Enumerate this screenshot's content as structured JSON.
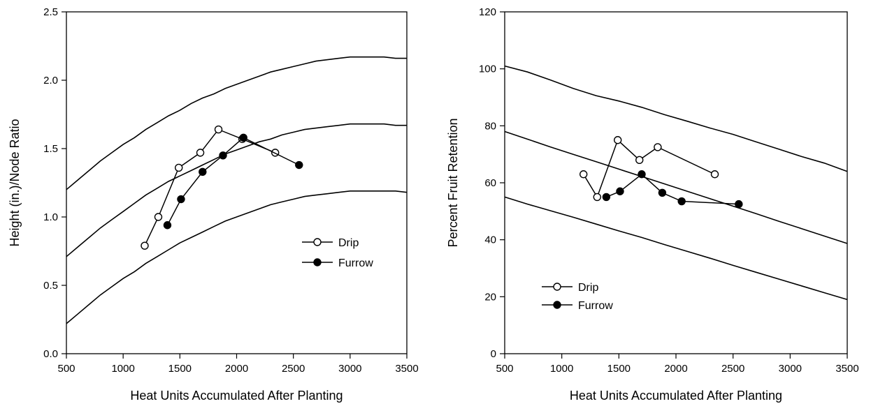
{
  "chart_data": [
    {
      "type": "line",
      "xlabel": "Heat Units Accumulated After Planting",
      "ylabel": "Height (in.)/Node Ratio",
      "xlim": [
        500,
        3500
      ],
      "ylim": [
        0,
        2.5
      ],
      "xticks": [
        500,
        1000,
        1500,
        2000,
        2500,
        3000,
        3500
      ],
      "yticks": [
        0.0,
        0.5,
        1.0,
        1.5,
        2.0,
        2.5
      ],
      "ytick_labels": [
        "0.0",
        "0.5",
        "1.0",
        "1.5",
        "2.0",
        "2.5"
      ],
      "grid": false,
      "legend_position": "center-right",
      "reference_curves": [
        {
          "x": [
            500,
            600,
            700,
            800,
            900,
            1000,
            1100,
            1200,
            1300,
            1400,
            1500,
            1600,
            1700,
            1800,
            1900,
            2000,
            2100,
            2200,
            2300,
            2400,
            2500,
            2600,
            2700,
            2800,
            2900,
            3000,
            3100,
            3200,
            3300,
            3400,
            3500
          ],
          "y": [
            1.2,
            1.27,
            1.34,
            1.41,
            1.47,
            1.53,
            1.58,
            1.64,
            1.69,
            1.74,
            1.78,
            1.83,
            1.87,
            1.9,
            1.94,
            1.97,
            2.0,
            2.03,
            2.06,
            2.08,
            2.1,
            2.12,
            2.14,
            2.15,
            2.16,
            2.17,
            2.17,
            2.17,
            2.17,
            2.16,
            2.16
          ]
        },
        {
          "x": [
            500,
            600,
            700,
            800,
            900,
            1000,
            1100,
            1200,
            1300,
            1400,
            1500,
            1600,
            1700,
            1800,
            1900,
            2000,
            2100,
            2200,
            2300,
            2400,
            2500,
            2600,
            2700,
            2800,
            2900,
            3000,
            3100,
            3200,
            3300,
            3400,
            3500
          ],
          "y": [
            0.71,
            0.78,
            0.85,
            0.92,
            0.98,
            1.04,
            1.1,
            1.16,
            1.21,
            1.26,
            1.3,
            1.34,
            1.38,
            1.42,
            1.46,
            1.49,
            1.52,
            1.55,
            1.57,
            1.6,
            1.62,
            1.64,
            1.65,
            1.66,
            1.67,
            1.68,
            1.68,
            1.68,
            1.68,
            1.67,
            1.67
          ]
        },
        {
          "x": [
            500,
            600,
            700,
            800,
            900,
            1000,
            1100,
            1200,
            1300,
            1400,
            1500,
            1600,
            1700,
            1800,
            1900,
            2000,
            2100,
            2200,
            2300,
            2400,
            2500,
            2600,
            2700,
            2800,
            2900,
            3000,
            3100,
            3200,
            3300,
            3400,
            3500
          ],
          "y": [
            0.22,
            0.29,
            0.36,
            0.43,
            0.49,
            0.55,
            0.6,
            0.66,
            0.71,
            0.76,
            0.81,
            0.85,
            0.89,
            0.93,
            0.97,
            1.0,
            1.03,
            1.06,
            1.09,
            1.11,
            1.13,
            1.15,
            1.16,
            1.17,
            1.18,
            1.19,
            1.19,
            1.19,
            1.19,
            1.19,
            1.18
          ]
        }
      ],
      "series": [
        {
          "name": "Drip",
          "marker": "open-circle",
          "x": [
            1190,
            1310,
            1490,
            1680,
            1840,
            2050,
            2340
          ],
          "y": [
            0.79,
            1.0,
            1.36,
            1.47,
            1.64,
            1.57,
            1.47
          ]
        },
        {
          "name": "Furrow",
          "marker": "filled-circle",
          "x": [
            1390,
            1510,
            1700,
            1880,
            2060,
            2550
          ],
          "y": [
            0.94,
            1.13,
            1.33,
            1.45,
            1.58,
            1.38
          ]
        }
      ]
    },
    {
      "type": "line",
      "xlabel": "Heat Units Accumulated After Planting",
      "ylabel": "Percent Fruit Retention",
      "xlim": [
        500,
        3500
      ],
      "ylim": [
        0,
        120
      ],
      "xticks": [
        500,
        1000,
        1500,
        2000,
        2500,
        3000,
        3500
      ],
      "yticks": [
        0,
        20,
        40,
        60,
        80,
        100,
        120
      ],
      "ytick_labels": [
        "0",
        "20",
        "40",
        "60",
        "80",
        "100",
        "120"
      ],
      "grid": false,
      "legend_position": "lower-left",
      "reference_curves": [
        {
          "x": [
            500,
            700,
            900,
            1100,
            1300,
            1500,
            1700,
            1900,
            2100,
            2300,
            2500,
            2700,
            2900,
            3100,
            3300,
            3500
          ],
          "y": [
            101.0,
            98.9,
            96.1,
            93.1,
            90.6,
            88.7,
            86.5,
            83.9,
            81.6,
            79.2,
            77.0,
            74.4,
            71.8,
            69.2,
            66.9,
            64.0
          ]
        },
        {
          "x": [
            500,
            700,
            900,
            1100,
            1300,
            1500,
            1700,
            1900,
            2100,
            2300,
            2500,
            2700,
            2900,
            3100,
            3300,
            3500
          ],
          "y": [
            78.0,
            75.3,
            72.6,
            70.0,
            67.4,
            64.8,
            62.2,
            59.6,
            57.0,
            54.4,
            51.8,
            49.2,
            46.5,
            43.9,
            41.3,
            38.7
          ]
        },
        {
          "x": [
            500,
            700,
            900,
            1100,
            1300,
            1500,
            1700,
            1900,
            2100,
            2300,
            2500,
            2700,
            2900,
            3100,
            3300,
            3500
          ],
          "y": [
            55.0,
            52.5,
            50.2,
            47.9,
            45.5,
            43.1,
            40.8,
            38.3,
            35.9,
            33.5,
            31.0,
            28.6,
            26.2,
            23.8,
            21.4,
            19.0
          ]
        }
      ],
      "series": [
        {
          "name": "Drip",
          "marker": "open-circle",
          "x": [
            1190,
            1310,
            1490,
            1680,
            1840,
            2340
          ],
          "y": [
            63,
            55,
            75,
            68,
            72.5,
            63
          ]
        },
        {
          "name": "Furrow",
          "marker": "filled-circle",
          "x": [
            1390,
            1510,
            1700,
            1880,
            2050,
            2550
          ],
          "y": [
            55,
            57,
            63,
            56.5,
            53.5,
            52.5
          ]
        }
      ]
    }
  ]
}
